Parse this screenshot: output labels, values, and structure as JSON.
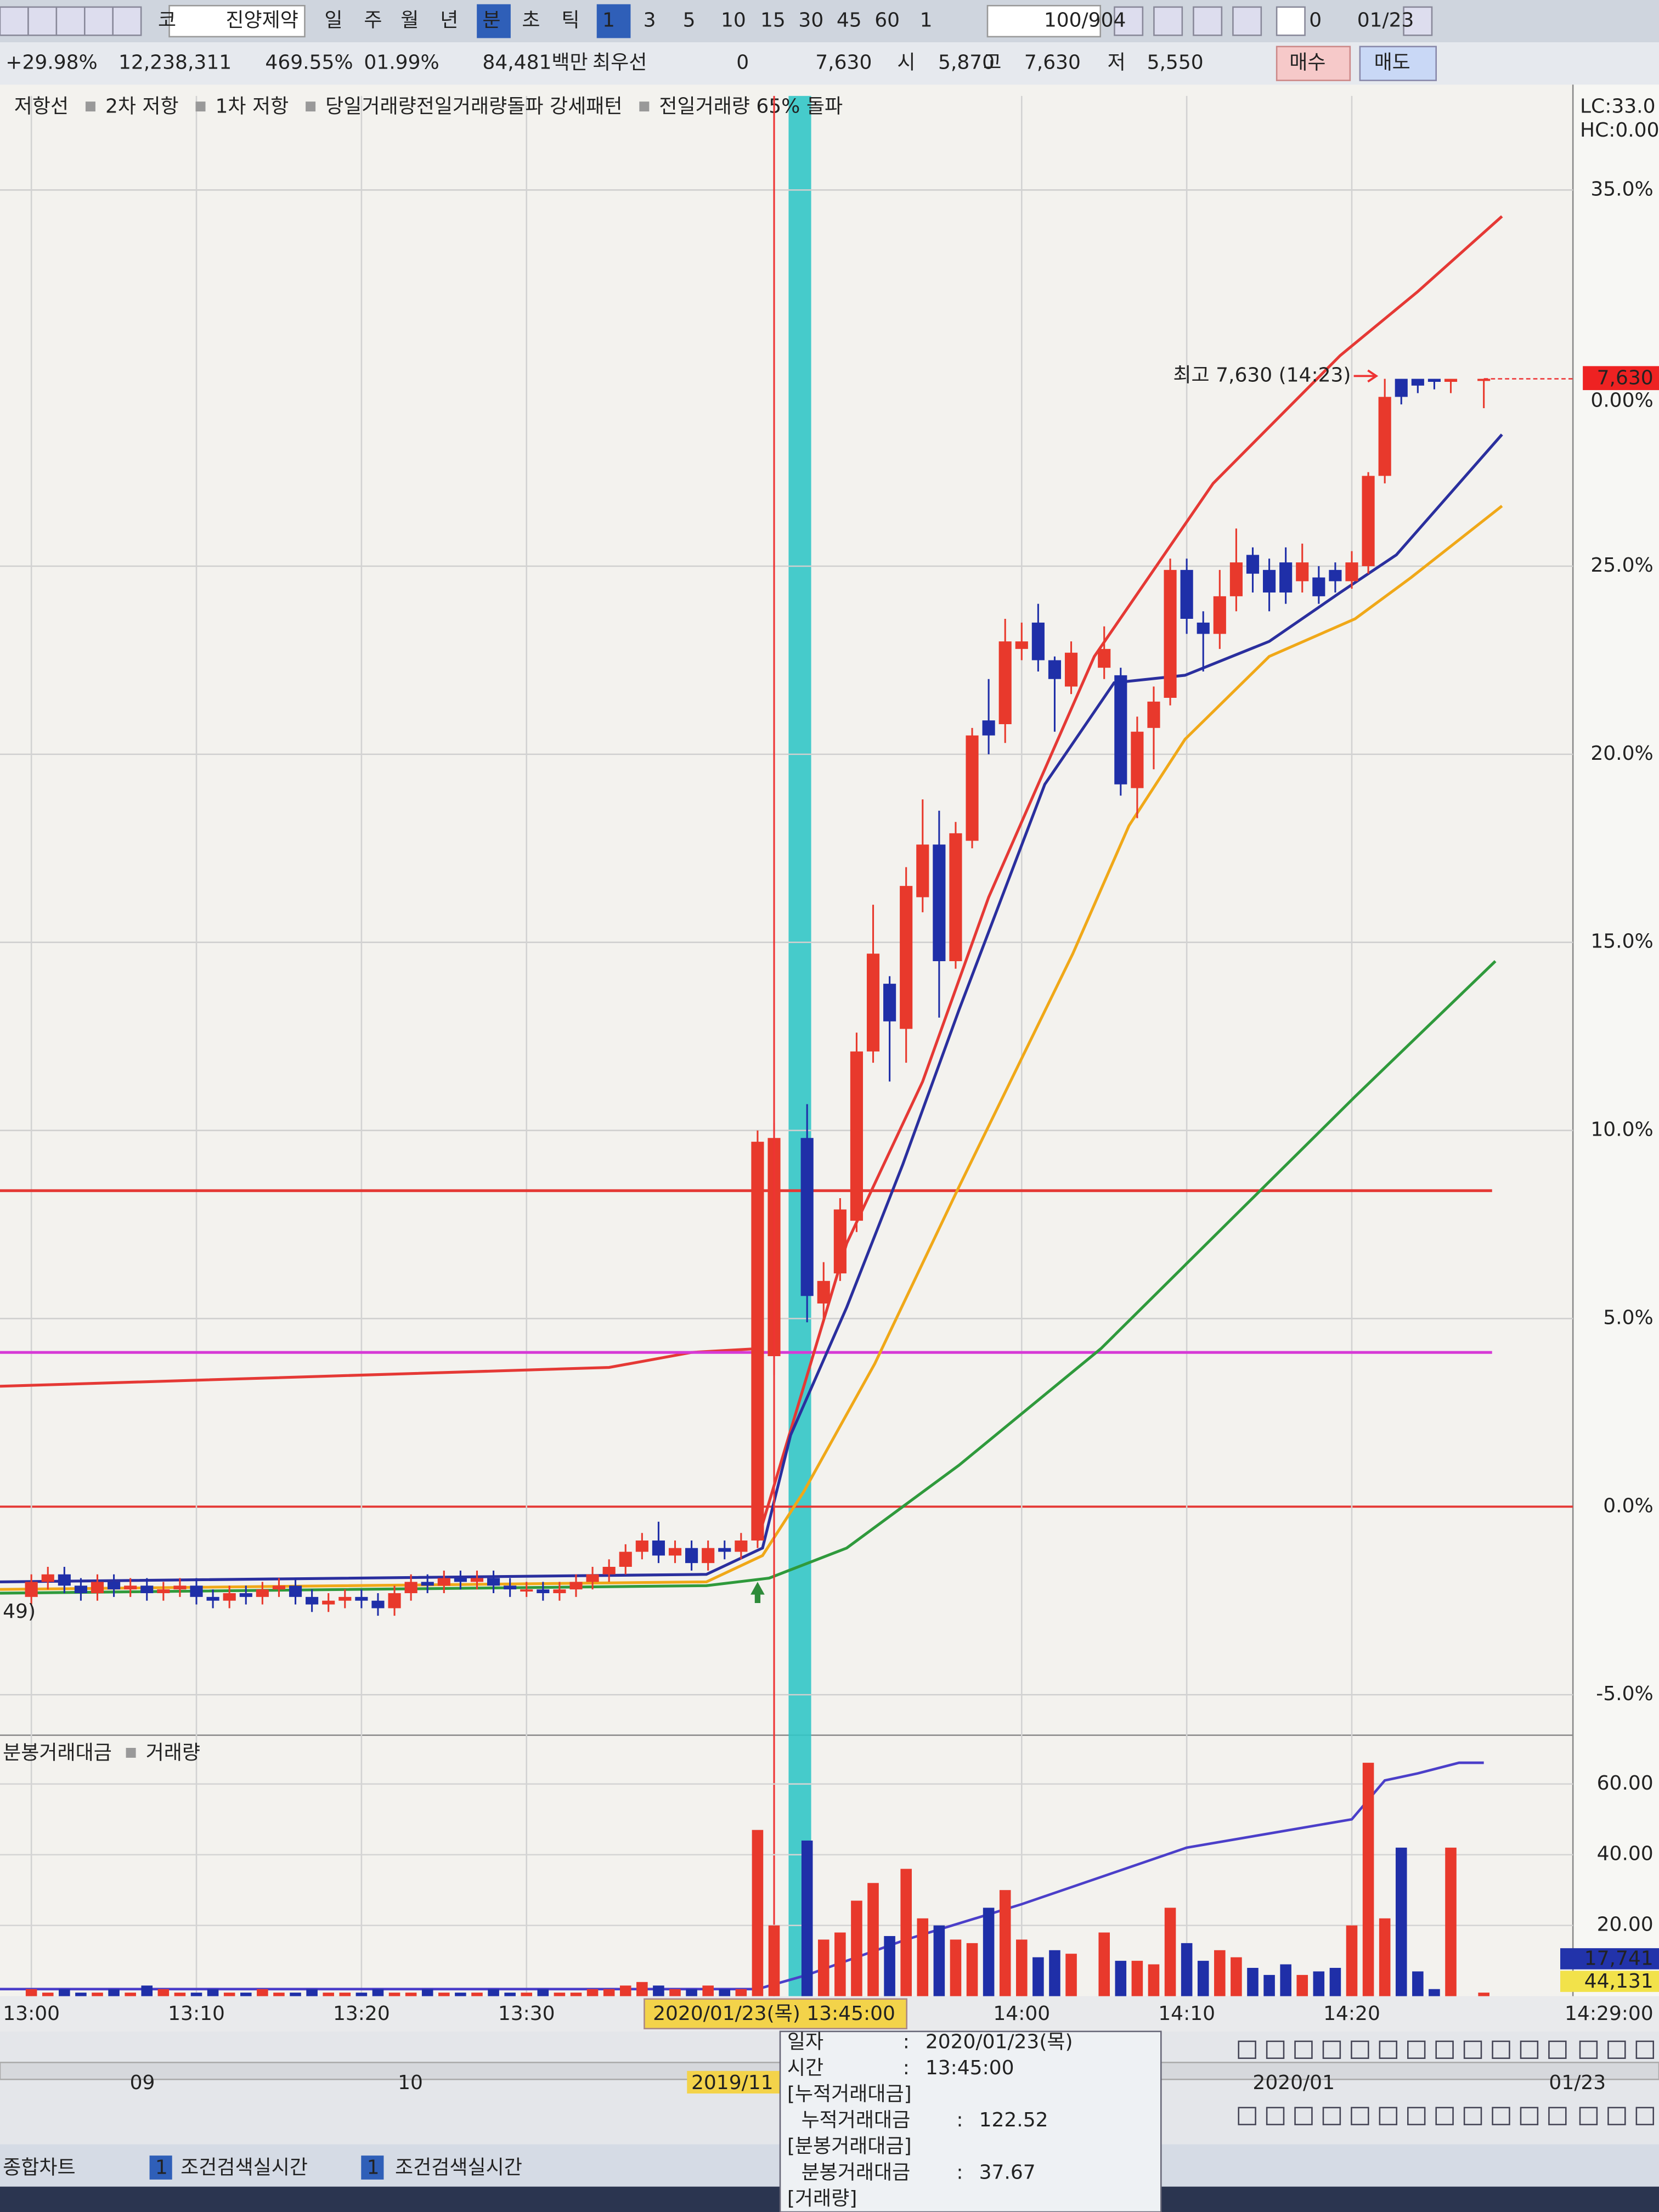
{
  "toolbar": {
    "items": [
      "코",
      "진양제약",
      "일",
      "주",
      "월",
      "년",
      "분",
      "초",
      "틱",
      "1",
      "3",
      "5",
      "10",
      "15",
      "30",
      "45",
      "60",
      "1",
      "100/904",
      "0",
      "01/23"
    ]
  },
  "info_bar": {
    "items": [
      "+29.98%",
      "12,238,311",
      "469.55%",
      "01.99%",
      "84,481백만",
      "최우선",
      "0",
      "7,630",
      "시",
      "5,870",
      "고",
      "7,630",
      "저",
      "5,550",
      "매수",
      "매도"
    ]
  },
  "chart_data": [
    {
      "type": "candlestick",
      "xlim": [
        -1.9,
        93.4
      ],
      "xticks": [
        {
          "value": 0,
          "label": "13:00"
        },
        {
          "value": 10,
          "label": "13:10"
        },
        {
          "value": 20,
          "label": "13:20"
        },
        {
          "value": 30,
          "label": "13:30"
        },
        {
          "value": 60,
          "label": "14:00"
        },
        {
          "value": 70,
          "label": "14:10"
        },
        {
          "value": 80,
          "label": "14:20"
        }
      ],
      "ylim": [
        -6,
        37.5
      ],
      "yticks": [
        {
          "value": -5,
          "label": "-5.0%"
        },
        {
          "value": 0,
          "label": "0.0%"
        },
        {
          "value": 5,
          "label": "5.0%"
        },
        {
          "value": 10,
          "label": "10.0%"
        },
        {
          "value": 15,
          "label": "15.0%"
        },
        {
          "value": 20,
          "label": "20.0%"
        },
        {
          "value": 25,
          "label": "25.0%"
        },
        {
          "value": 35,
          "label": "35.0%"
        }
      ],
      "grid": true,
      "zero_line_color": "#e53935",
      "candles": {
        "up_color": "#e8392c",
        "down_color": "#1f2fa8",
        "x": [
          0,
          1,
          2,
          3,
          4,
          5,
          6,
          7,
          8,
          9,
          10,
          11,
          12,
          13,
          14,
          15,
          16,
          17,
          18,
          19,
          20,
          21,
          22,
          23,
          24,
          25,
          26,
          27,
          28,
          29,
          30,
          31,
          32,
          33,
          34,
          35,
          36,
          37,
          38,
          39,
          40,
          41,
          42,
          43,
          44,
          45,
          47,
          48,
          49,
          50,
          51,
          52,
          53,
          54,
          55,
          56,
          57,
          58,
          59,
          60,
          61,
          62,
          63,
          65,
          66,
          67,
          68,
          69,
          70,
          71,
          72,
          73,
          74,
          75,
          76,
          77,
          78,
          79,
          80,
          81,
          82,
          83,
          84,
          85,
          86,
          88
        ],
        "open": [
          -2.4,
          -2.0,
          -1.8,
          -2.1,
          -2.3,
          -2.0,
          -2.2,
          -2.1,
          -2.3,
          -2.2,
          -2.1,
          -2.4,
          -2.5,
          -2.3,
          -2.4,
          -2.2,
          -2.1,
          -2.4,
          -2.6,
          -2.5,
          -2.4,
          -2.5,
          -2.7,
          -2.3,
          -2.0,
          -2.1,
          -1.9,
          -2.0,
          -1.9,
          -2.1,
          -2.2,
          -2.2,
          -2.3,
          -2.2,
          -2.0,
          -1.8,
          -1.6,
          -1.2,
          -0.9,
          -1.3,
          -1.1,
          -1.5,
          -1.1,
          -1.2,
          -0.9,
          4.0,
          9.8,
          5.4,
          6.2,
          7.6,
          12.1,
          13.9,
          12.7,
          16.2,
          17.6,
          14.5,
          17.7,
          20.9,
          20.8,
          22.8,
          23.5,
          22.5,
          21.8,
          22.3,
          22.1,
          19.1,
          20.7,
          21.5,
          24.9,
          23.5,
          23.2,
          24.2,
          25.3,
          24.9,
          25.1,
          24.6,
          24.7,
          24.9,
          24.6,
          25.0,
          27.4,
          29.98,
          29.98,
          29.98,
          29.9,
          29.98
        ],
        "high": [
          -1.8,
          -1.6,
          -1.6,
          -1.9,
          -1.8,
          -1.8,
          -1.9,
          -1.9,
          -2.0,
          -1.9,
          -1.9,
          -2.2,
          -2.1,
          -2.1,
          -2.0,
          -1.9,
          -1.9,
          -2.2,
          -2.3,
          -2.2,
          -2.2,
          -2.3,
          -2.1,
          -1.8,
          -1.8,
          -1.7,
          -1.7,
          -1.7,
          -1.7,
          -1.9,
          -2.0,
          -2.0,
          -2.0,
          -1.8,
          -1.6,
          -1.4,
          -1.0,
          -0.7,
          -0.4,
          -0.9,
          -0.9,
          -0.9,
          -0.9,
          -0.7,
          10.0,
          10.2,
          10.7,
          6.5,
          8.2,
          12.6,
          16.0,
          14.1,
          17.0,
          18.8,
          18.5,
          18.2,
          20.7,
          22.0,
          23.6,
          23.5,
          24.0,
          22.6,
          23.0,
          23.4,
          22.3,
          21.0,
          21.8,
          25.2,
          25.2,
          23.8,
          24.9,
          26.0,
          25.5,
          25.2,
          25.5,
          25.6,
          25.0,
          25.1,
          25.4,
          27.5,
          29.98,
          29.98,
          29.98,
          29.98,
          29.98,
          29.98
        ],
        "low": [
          -2.6,
          -2.2,
          -2.3,
          -2.5,
          -2.5,
          -2.4,
          -2.4,
          -2.5,
          -2.5,
          -2.4,
          -2.6,
          -2.7,
          -2.7,
          -2.6,
          -2.6,
          -2.4,
          -2.6,
          -2.8,
          -2.8,
          -2.7,
          -2.7,
          -2.9,
          -2.9,
          -2.5,
          -2.3,
          -2.3,
          -2.2,
          -2.2,
          -2.3,
          -2.4,
          -2.4,
          -2.5,
          -2.5,
          -2.4,
          -2.2,
          -2.0,
          -1.8,
          -1.4,
          -1.5,
          -1.5,
          -1.7,
          -1.7,
          -1.4,
          -1.4,
          -1.1,
          3.5,
          4.9,
          4.9,
          6.0,
          7.3,
          11.8,
          11.3,
          11.8,
          15.8,
          13.0,
          14.3,
          17.5,
          20.0,
          20.3,
          22.5,
          22.2,
          20.6,
          21.6,
          22.0,
          18.9,
          18.3,
          19.6,
          21.3,
          23.2,
          22.2,
          22.8,
          23.8,
          24.3,
          23.8,
          24.0,
          24.3,
          24.0,
          24.3,
          24.4,
          24.8,
          27.2,
          29.3,
          29.6,
          29.7,
          29.6,
          29.2
        ],
        "close": [
          -2.0,
          -1.8,
          -2.1,
          -2.3,
          -2.0,
          -2.2,
          -2.1,
          -2.3,
          -2.2,
          -2.1,
          -2.4,
          -2.5,
          -2.3,
          -2.4,
          -2.2,
          -2.1,
          -2.4,
          -2.6,
          -2.5,
          -2.4,
          -2.5,
          -2.7,
          -2.3,
          -2.0,
          -2.1,
          -1.9,
          -2.0,
          -1.9,
          -2.1,
          -2.2,
          -2.2,
          -2.3,
          -2.2,
          -2.0,
          -1.8,
          -1.6,
          -1.2,
          -0.9,
          -1.3,
          -1.1,
          -1.5,
          -1.1,
          -1.2,
          -0.9,
          9.7,
          9.8,
          5.6,
          6.0,
          7.9,
          12.1,
          14.7,
          12.9,
          16.5,
          17.6,
          14.5,
          17.9,
          20.5,
          20.5,
          23.0,
          23.0,
          22.5,
          22.0,
          22.7,
          22.8,
          19.2,
          20.6,
          21.4,
          24.9,
          23.6,
          23.2,
          24.2,
          25.1,
          24.8,
          24.3,
          24.3,
          25.1,
          24.2,
          24.6,
          25.1,
          27.4,
          29.5,
          29.5,
          29.8,
          29.9,
          29.98,
          29.98
        ]
      },
      "series": [
        {
          "name": "저항선",
          "color": "#e53935",
          "kind": "line",
          "x": [
            -1.9,
            35,
            40,
            44
          ],
          "values": [
            3.2,
            3.7,
            4.1,
            4.2
          ]
        },
        {
          "name": "2차 저항",
          "color": "#e53935",
          "kind": "line",
          "x": [
            -1.9,
            88.5
          ],
          "values": [
            8.4,
            8.4
          ]
        },
        {
          "name": "1차 저항",
          "color": "#d63ad6",
          "kind": "line",
          "x": [
            -1.9,
            88.5
          ],
          "values": [
            4.1,
            4.1
          ]
        },
        {
          "name": "당일거래량전일거래량돌파 강세패턴",
          "color": "#555555"
        },
        {
          "name": "전일거래량 65% 돌파",
          "color": "#2e8b3a",
          "kind": "marker",
          "x": [
            44
          ],
          "values": [
            -2.0
          ]
        },
        {
          "color": "#e53935",
          "kind": "line",
          "x": [
            44,
            49.4,
            54,
            58,
            64.4,
            71.6,
            79.3,
            84,
            89.1
          ],
          "values": [
            -0.9,
            7.0,
            11.3,
            16.2,
            22.6,
            27.2,
            30.6,
            32.3,
            34.3
          ]
        },
        {
          "color": "#2a2f9e",
          "kind": "line",
          "x": [
            -1.9,
            40.9,
            44.3,
            46,
            49.4,
            52.8,
            56.2,
            61.4,
            65.6,
            69.9,
            75,
            79.3,
            82.7,
            89.1
          ],
          "values": [
            -2.0,
            -1.8,
            -1.1,
            1.9,
            5.3,
            9.1,
            13.2,
            19.2,
            21.9,
            22.1,
            23.0,
            24.3,
            25.3,
            28.5
          ]
        },
        {
          "color": "#f0a818",
          "kind": "line",
          "x": [
            -1.9,
            40.9,
            44.3,
            46.8,
            51.1,
            56.2,
            63.1,
            66.5,
            69.9,
            75,
            80.2,
            83.6,
            89.1
          ],
          "values": [
            -2.2,
            -2.0,
            -1.3,
            0.4,
            3.8,
            8.5,
            14.7,
            18.1,
            20.4,
            22.6,
            23.6,
            24.7,
            26.6
          ]
        },
        {
          "color": "#2f9a3c",
          "kind": "line",
          "x": [
            -1.9,
            40.9,
            44.7,
            49.4,
            56.2,
            64.8,
            73.3,
            80.2,
            88.7
          ],
          "values": [
            -2.3,
            -2.1,
            -1.9,
            -1.1,
            1.1,
            4.2,
            7.9,
            10.9,
            14.5
          ]
        }
      ],
      "annotation": "최고 7,630 (14:23)",
      "price_tag": {
        "label": "7,630",
        "sublabel": "0.00%"
      },
      "corner_labels": [
        "LC:33.0",
        "HC:0.00"
      ],
      "left_label": "49)",
      "crosshair": {
        "x": 45,
        "label": "2020/01/23(목) 13:45:00"
      },
      "x_end_label": "14:29:00"
    },
    {
      "type": "bar",
      "ylim": [
        0,
        73
      ],
      "yticks": [
        {
          "value": 20,
          "label": "20.00"
        },
        {
          "value": 40,
          "label": "40.00"
        },
        {
          "value": 60,
          "label": "60.00"
        }
      ],
      "series": [
        {
          "name": "분봉거래대금",
          "kind": "line",
          "color": "#4b3fc9",
          "x": [
            -1.9,
            44,
            47,
            53,
            60,
            65,
            70,
            75,
            80,
            82,
            84,
            86.5,
            88
          ],
          "values": [
            2,
            2,
            6,
            16,
            26,
            34,
            42,
            46,
            50,
            61,
            63,
            66,
            66
          ]
        },
        {
          "name": "거래량",
          "kind": "bar",
          "x": [
            0,
            1,
            2,
            3,
            4,
            5,
            6,
            7,
            8,
            9,
            10,
            11,
            12,
            13,
            14,
            15,
            16,
            17,
            18,
            19,
            20,
            21,
            22,
            23,
            24,
            25,
            26,
            27,
            28,
            29,
            30,
            31,
            32,
            33,
            34,
            35,
            36,
            37,
            38,
            39,
            40,
            41,
            42,
            43,
            44,
            45,
            47,
            48,
            49,
            50,
            51,
            52,
            53,
            54,
            55,
            56,
            57,
            58,
            59,
            60,
            61,
            62,
            63,
            65,
            66,
            67,
            68,
            69,
            70,
            71,
            72,
            73,
            74,
            75,
            76,
            77,
            78,
            79,
            80,
            81,
            82,
            83,
            84,
            85,
            86,
            88
          ],
          "values": [
            2,
            1,
            2,
            1,
            1,
            2,
            1,
            3,
            2,
            1,
            1,
            2,
            1,
            1,
            2,
            1,
            1,
            2,
            1,
            1,
            1,
            2,
            1,
            1,
            2,
            1,
            1,
            1,
            2,
            1,
            1,
            2,
            1,
            1,
            2,
            2,
            3,
            4,
            3,
            2,
            2,
            3,
            2,
            2,
            47,
            20,
            44,
            16,
            18,
            27,
            32,
            17,
            36,
            22,
            20,
            16,
            15,
            25,
            30,
            16,
            11,
            13,
            12,
            18,
            10,
            10,
            9,
            25,
            15,
            10,
            13,
            11,
            8,
            6,
            9,
            6,
            7,
            8,
            20,
            66,
            22,
            42,
            7,
            2,
            42,
            1
          ]
        }
      ],
      "value_boxes": [
        {
          "label": "17,741",
          "color": "#2233aa"
        },
        {
          "label": "44,131",
          "color": "#f2e24a"
        }
      ]
    }
  ],
  "tooltip": {
    "rows": [
      [
        "일자",
        "2020/01/23(목)"
      ],
      [
        "시간",
        "13:45:00"
      ],
      [
        "[누적거래대금]"
      ],
      [
        "누적거래대금",
        "122.52"
      ],
      [
        "[분봉거래대금]"
      ],
      [
        "분봉거래대금",
        "37.67"
      ],
      [
        "[거래량]"
      ]
    ]
  },
  "navigator": {
    "labels": [
      "09",
      "10",
      "2019/11",
      "2020/01",
      "01/23"
    ]
  },
  "tabs": {
    "items": [
      "종합차트",
      "1",
      "조건검색실시간",
      "1",
      "조건검색실시간"
    ]
  }
}
